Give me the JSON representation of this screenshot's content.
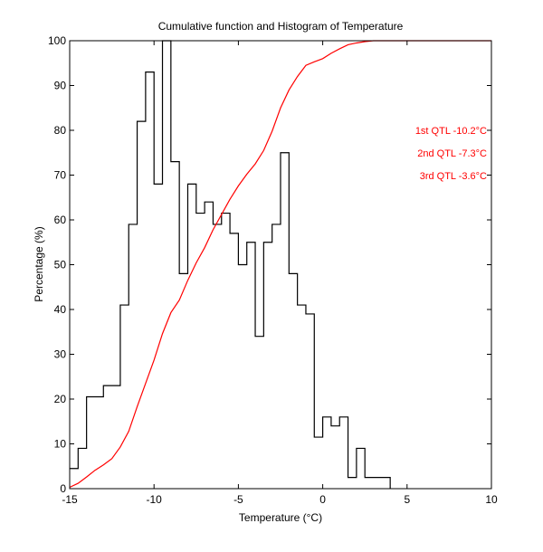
{
  "chart_data": {
    "type": "line",
    "title": "Cumulative function and Histogram of Temperature",
    "xlabel": "Temperature (°C)",
    "ylabel": "Percentage (%)",
    "xlim": [
      -15,
      10
    ],
    "ylim": [
      0,
      100
    ],
    "xticks": [
      -15,
      -10,
      -5,
      0,
      5,
      10
    ],
    "yticks": [
      0,
      10,
      20,
      30,
      40,
      50,
      60,
      70,
      80,
      90,
      100
    ],
    "xtick_labels": [
      "-15",
      "-10",
      "-5",
      "0",
      "5",
      "10"
    ],
    "ytick_labels": [
      "0",
      "10",
      "20",
      "30",
      "40",
      "50",
      "60",
      "70",
      "80",
      "90",
      "100"
    ],
    "series": [
      {
        "name": "Histogram",
        "style": "step",
        "color": "#000000",
        "x": [
          -15,
          -14.5,
          -14,
          -13,
          -12,
          -11.5,
          -11,
          -10.5,
          -10,
          -9.5,
          -9,
          -8.5,
          -8,
          -7.5,
          -7,
          -6.5,
          -6,
          -5.5,
          -5,
          -4.5,
          -4,
          -3.5,
          -3,
          -2.5,
          -2,
          -1.5,
          -1,
          -0.5,
          0,
          0.5,
          1,
          1.5,
          2,
          2.5,
          3,
          4
        ],
        "values": [
          4.5,
          9,
          20.5,
          23,
          41,
          59,
          82,
          93,
          68,
          100,
          73,
          48,
          68,
          61.5,
          64,
          59,
          61.5,
          57,
          50,
          55,
          34,
          55,
          59,
          75,
          48,
          41,
          39,
          11.5,
          16,
          14,
          16,
          2.5,
          9,
          2.5,
          2.5,
          2.5
        ]
      },
      {
        "name": "Cumulative",
        "style": "line",
        "color": "#ff0000",
        "x": [
          -15,
          -14.5,
          -14,
          -13.5,
          -13,
          -12.5,
          -12,
          -11.5,
          -11,
          -10.5,
          -10,
          -9.5,
          -9,
          -8.5,
          -8,
          -7.5,
          -7,
          -6.5,
          -6,
          -5.5,
          -5,
          -4.5,
          -4,
          -3.5,
          -3,
          -2.5,
          -2,
          -1.5,
          -1,
          -0.5,
          0,
          0.5,
          1,
          1.5,
          2,
          2.5,
          3,
          4,
          6,
          10
        ],
        "values": [
          0.3,
          1.2,
          2.6,
          4.1,
          5.3,
          6.7,
          9.3,
          12.8,
          18.3,
          23.5,
          28.7,
          34.6,
          39.3,
          42.1,
          46.5,
          50.4,
          53.8,
          57.8,
          61.2,
          64.6,
          67.6,
          70.2,
          72.5,
          75.5,
          79.8,
          85,
          89,
          92,
          94.5,
          95.3,
          96,
          97.2,
          98.2,
          99.1,
          99.5,
          99.8,
          100,
          100,
          100,
          100
        ]
      }
    ],
    "annotations": [
      {
        "text": "1st QTL -10.2°C",
        "color": "#ff0000"
      },
      {
        "text": "2nd QTL -7.3°C",
        "color": "#ff0000"
      },
      {
        "text": "3rd QTL -3.6°C",
        "color": "#ff0000"
      }
    ],
    "grid": false,
    "legend": "none"
  }
}
